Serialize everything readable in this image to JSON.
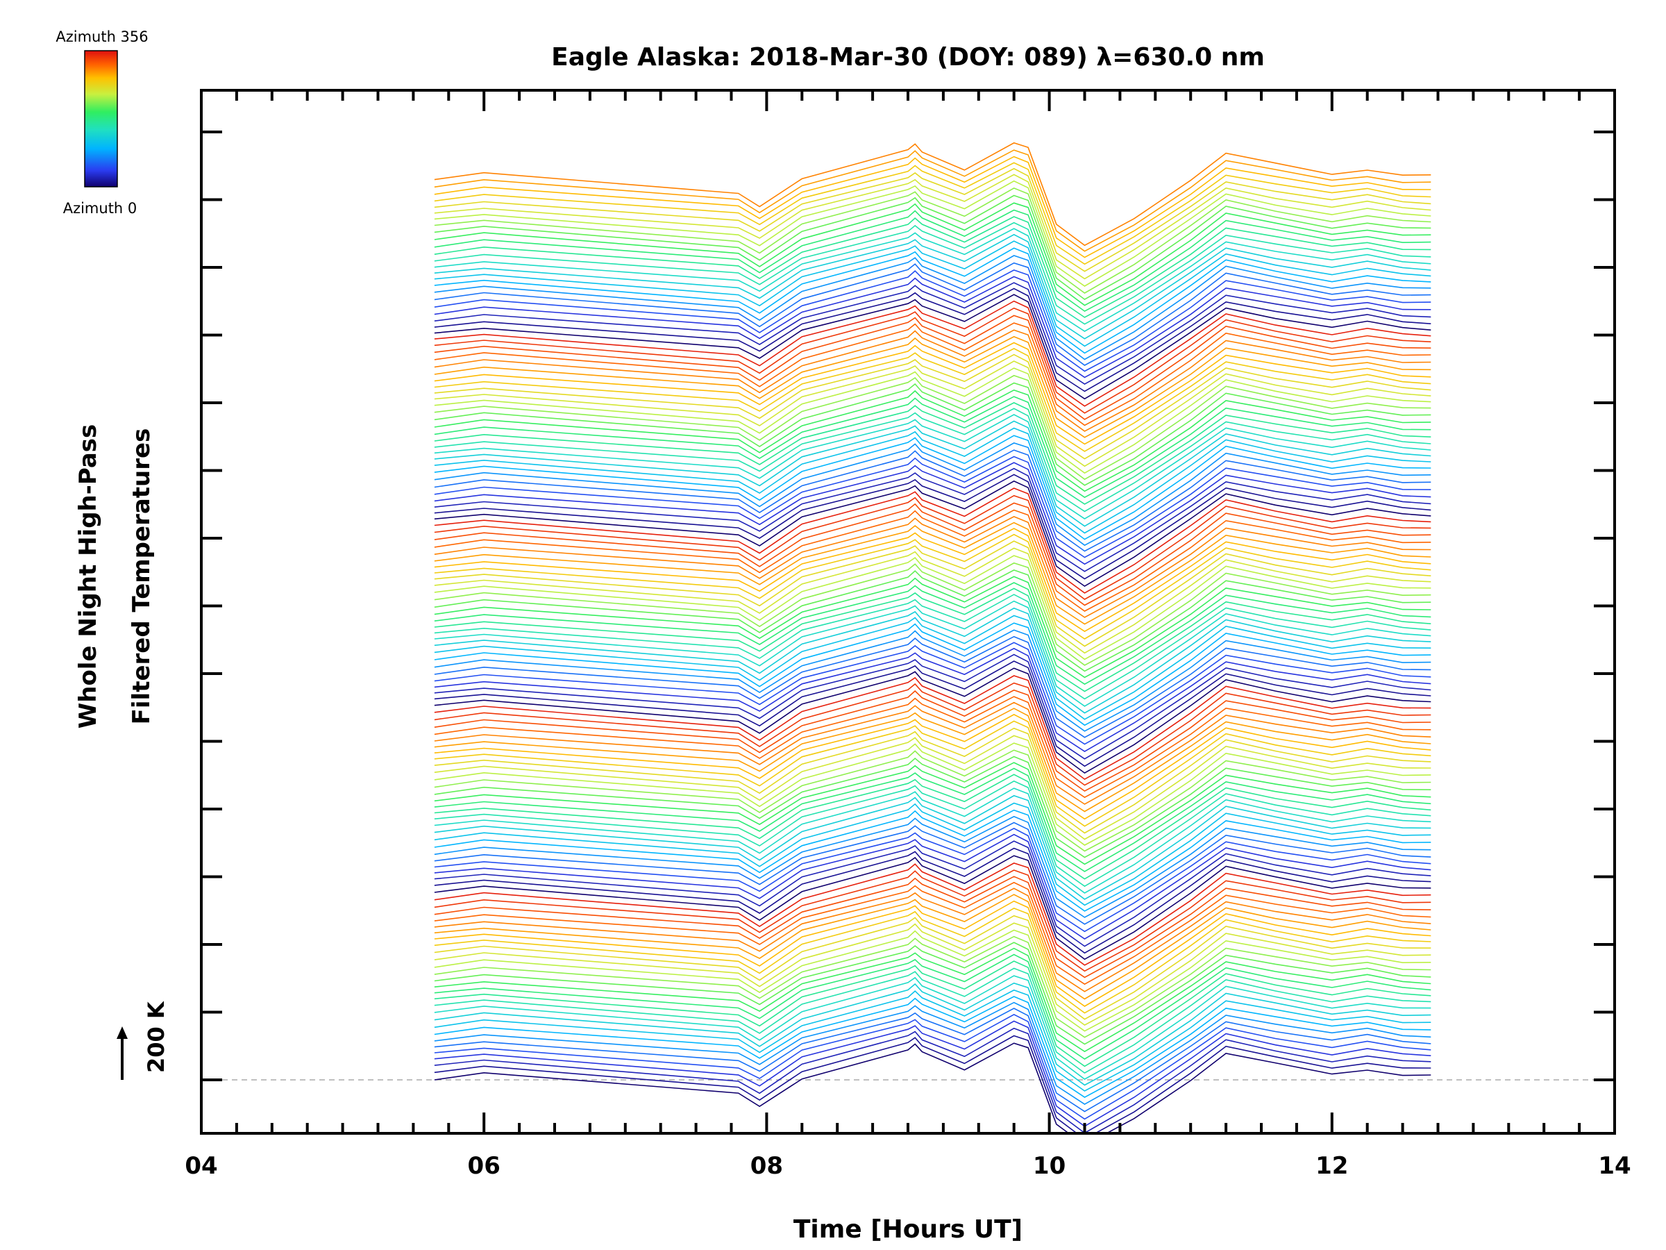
{
  "chart_data": {
    "type": "line",
    "title": "Eagle Alaska: 2018-Mar-30 (DOY: 089) λ=630.0 nm",
    "xlabel": "Time [Hours UT]",
    "ylabel": [
      "Whole Night High-Pass",
      "Filtered Temperatures"
    ],
    "xlim": [
      4,
      14
    ],
    "x_ticks": [
      "04",
      "06",
      "08",
      "10",
      "12",
      "14"
    ],
    "scale_bar": {
      "label": "200 K",
      "value_K": 200
    },
    "colorbar": {
      "top_label": "Azimuth 356",
      "bottom_label": "Azimuth 0",
      "colormap": "rainbow",
      "range": [
        0,
        356
      ]
    },
    "baseline_line": "dashed-gray",
    "n_series": 136,
    "series_offset_K": 32,
    "x": [
      5.65,
      6.0,
      7.8,
      7.95,
      8.25,
      9.0,
      9.05,
      9.1,
      9.4,
      9.75,
      9.85,
      10.05,
      10.25,
      10.6,
      11.0,
      11.25,
      11.6,
      12.0,
      12.25,
      12.5,
      12.7
    ],
    "profile_K": [
      0,
      30,
      -70,
      -130,
      10,
      150,
      175,
      140,
      55,
      190,
      160,
      -230,
      -330,
      -190,
      0,
      130,
      80,
      30,
      55,
      25,
      20
    ],
    "profile_note_K": "mean temperature perturbation profile shared by all azimuth traces; each trace is offset by series_offset_K"
  },
  "colors": {
    "axis": "#000000",
    "baseline": "#aaaaaa",
    "colormap_stops": [
      "#10006e",
      "#2a3cf0",
      "#00b4ff",
      "#20e0c0",
      "#30ee60",
      "#c8f040",
      "#ffc000",
      "#ff6000",
      "#e01010"
    ]
  }
}
